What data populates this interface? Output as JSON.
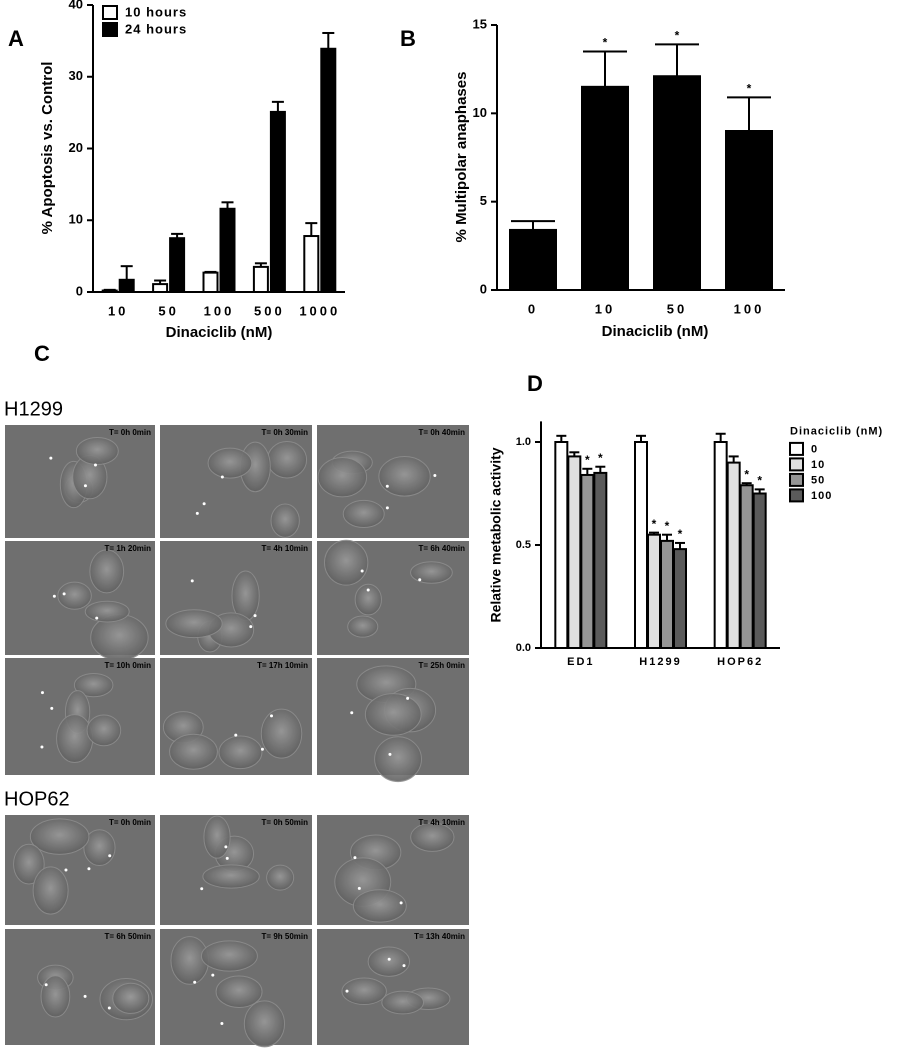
{
  "panel_labels": [
    "A",
    "B",
    "C",
    "D"
  ],
  "chart_data": [
    {
      "type": "bar",
      "x_label": "Dinaciclib (nM)",
      "y_label": "% Apoptosis vs. Control",
      "categories": [
        "10",
        "50",
        "100",
        "500",
        "1000"
      ],
      "series": [
        {
          "name": "10 hours",
          "color": "#ffffff",
          "values": [
            0.2,
            1.1,
            2.7,
            3.5,
            7.8
          ],
          "errors": [
            0.1,
            0.5,
            0.1,
            0.5,
            1.8
          ]
        },
        {
          "name": "24 hours",
          "color": "#000000",
          "values": [
            1.7,
            7.5,
            11.6,
            25.1,
            33.9
          ],
          "errors": [
            1.9,
            0.6,
            0.9,
            1.4,
            2.2
          ]
        }
      ],
      "ylim": [
        0,
        40
      ],
      "yticks": [
        0,
        10,
        20,
        30,
        40
      ],
      "grid": false,
      "legend": "top-left"
    },
    {
      "type": "bar",
      "x_label": "Dinaciclib (nM)",
      "y_label": "% Multipolar anaphases",
      "categories": [
        "0",
        "10",
        "50",
        "100"
      ],
      "values": [
        3.4,
        11.5,
        12.1,
        9.0
      ],
      "errors": [
        0.5,
        2.0,
        1.8,
        1.9
      ],
      "color": "#000000",
      "significance": [
        null,
        "*",
        "*",
        "*"
      ],
      "ylim": [
        0,
        15
      ],
      "yticks": [
        0,
        5,
        10,
        15
      ],
      "grid": false
    },
    {
      "type": "bar",
      "y_label": "Relative metabolic activity",
      "legend_title": "Dinaciclib (nM)",
      "categories": [
        "ED1",
        "H1299",
        "HOP62"
      ],
      "series": [
        {
          "name": "0",
          "color": "#ffffff",
          "values": [
            1.0,
            1.0,
            1.0
          ],
          "errors": [
            0.03,
            0.03,
            0.04
          ],
          "significance": [
            null,
            null,
            null
          ]
        },
        {
          "name": "10",
          "color": "#e0e0e0",
          "values": [
            0.93,
            0.55,
            0.9
          ],
          "errors": [
            0.02,
            0.01,
            0.03
          ],
          "significance": [
            null,
            "*",
            null
          ]
        },
        {
          "name": "50",
          "color": "#959595",
          "values": [
            0.84,
            0.52,
            0.79
          ],
          "errors": [
            0.03,
            0.03,
            0.01
          ],
          "significance": [
            "*",
            "*",
            "*"
          ]
        },
        {
          "name": "100",
          "color": "#5a5a5a",
          "values": [
            0.85,
            0.48,
            0.75
          ],
          "errors": [
            0.03,
            0.03,
            0.02
          ],
          "significance": [
            "*",
            "*",
            "*"
          ]
        }
      ],
      "ylim": [
        0,
        1.1
      ],
      "yticks": [
        {
          "value": 0,
          "label": "0.0"
        },
        0.5,
        {
          "value": 1,
          "label": "1.0"
        }
      ],
      "grid": false,
      "legend": "right"
    }
  ],
  "image_panels": [
    {
      "cell_line": "H1299",
      "timestamps": [
        "T= 0h 0min",
        "T= 0h 30min",
        "T= 0h 40min",
        "T= 1h 20min",
        "T= 4h 10min",
        "T= 6h 40min",
        "T= 10h 0min",
        "T= 17h 10min",
        "T= 25h 0min"
      ]
    },
    {
      "cell_line": "HOP62",
      "timestamps": [
        "T= 0h 0min",
        "T= 0h 50min",
        "T= 4h 10min",
        "T= 6h 50min",
        "T= 9h 50min",
        "T= 13h 40min"
      ]
    }
  ]
}
